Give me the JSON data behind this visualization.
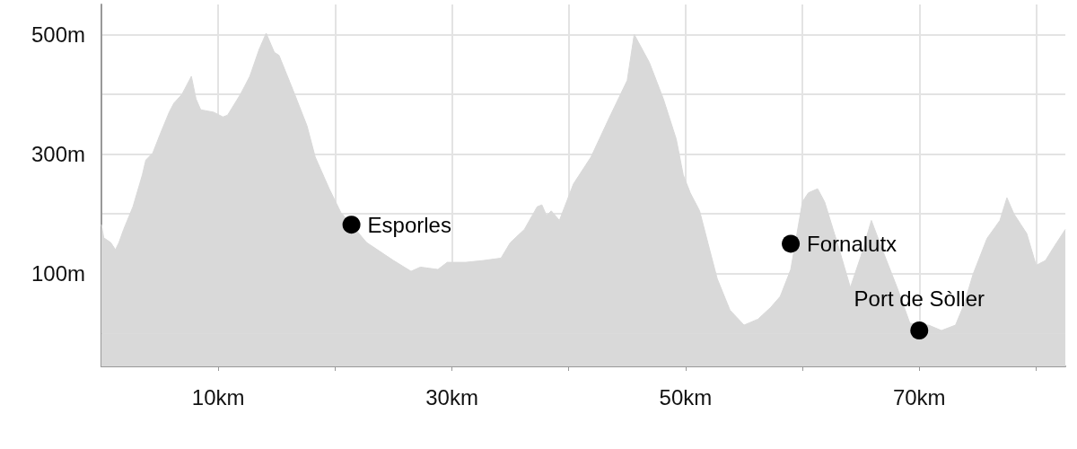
{
  "chart_data": {
    "type": "area",
    "x": [
      0,
      0.2,
      0.8,
      1.2,
      1.5,
      1.9,
      2.7,
      3.5,
      3.8,
      4.4,
      5,
      5.8,
      6.2,
      6.9,
      7.7,
      8.1,
      8.5,
      9.6,
      10.4,
      10.8,
      11.9,
      12.7,
      13.5,
      14.1,
      14.8,
      15.2,
      16.4,
      17.6,
      18.3,
      19.5,
      20.5,
      21.4,
      22.7,
      25,
      26.5,
      27.3,
      28.8,
      29.6,
      31.2,
      32.7,
      34.2,
      35,
      36.2,
      37.3,
      37.7,
      38.1,
      38.5,
      39.2,
      40.4,
      41.9,
      43.5,
      45,
      45.6,
      46.9,
      48.1,
      49.2,
      49.8,
      50.4,
      51.2,
      51.9,
      52.7,
      53.8,
      55,
      56.2,
      57.3,
      58.1,
      59,
      60,
      60.5,
      61.3,
      61.9,
      63.1,
      64.1,
      65,
      65.9,
      66.9,
      68.1,
      69.2,
      70.8,
      71.9,
      73.1,
      73.8,
      74.6,
      75.8,
      76.9,
      77.5,
      78.1,
      79.2,
      80,
      80.8,
      81.5,
      82.5
    ],
    "values": [
      182,
      160,
      152,
      140,
      152,
      174,
      212,
      265,
      290,
      302,
      332,
      370,
      385,
      400,
      430,
      392,
      374,
      370,
      362,
      365,
      400,
      430,
      475,
      502,
      470,
      465,
      407,
      347,
      295,
      242,
      202,
      182,
      152,
      122,
      104,
      111,
      107,
      119,
      119,
      122,
      126,
      152,
      174,
      212,
      215,
      197,
      205,
      189,
      250,
      295,
      362,
      423,
      500,
      453,
      392,
      325,
      265,
      235,
      205,
      152,
      92,
      39,
      14,
      24,
      44,
      62,
      107,
      220,
      235,
      242,
      220,
      144,
      77,
      129,
      189,
      137,
      77,
      17,
      14,
      5,
      14,
      47,
      99,
      159,
      189,
      227,
      200,
      167,
      114,
      122,
      144,
      174
    ],
    "color": "#d9d9d9",
    "xlim": [
      0,
      82.5
    ],
    "xticks": [
      {
        "value": 10,
        "label": "10km"
      },
      {
        "value": 20,
        "label": null
      },
      {
        "value": 30,
        "label": "30km"
      },
      {
        "value": 40,
        "label": null
      },
      {
        "value": 50,
        "label": "50km"
      },
      {
        "value": 60,
        "label": null
      },
      {
        "value": 70,
        "label": "70km"
      },
      {
        "value": 80,
        "label": null
      }
    ],
    "ylim": [
      -55,
      550
    ],
    "yticks": [
      {
        "value": 0,
        "label": null
      },
      {
        "value": 100,
        "label": "100m"
      },
      {
        "value": 200,
        "label": null
      },
      {
        "value": 300,
        "label": "300m"
      },
      {
        "value": 400,
        "label": null
      },
      {
        "value": 500,
        "label": "500m"
      }
    ],
    "grid": true,
    "bands": [
      {
        "axis": "y",
        "from": -55,
        "to": 0,
        "color": "#d9d9d9"
      }
    ],
    "annotations": [
      {
        "text": "Esporles",
        "x": 21.4,
        "y": 182
      },
      {
        "text": "Fornalutx",
        "x": 59,
        "y": 150
      },
      {
        "text": "Port de Sòller",
        "x": 70,
        "y": 5
      }
    ]
  }
}
